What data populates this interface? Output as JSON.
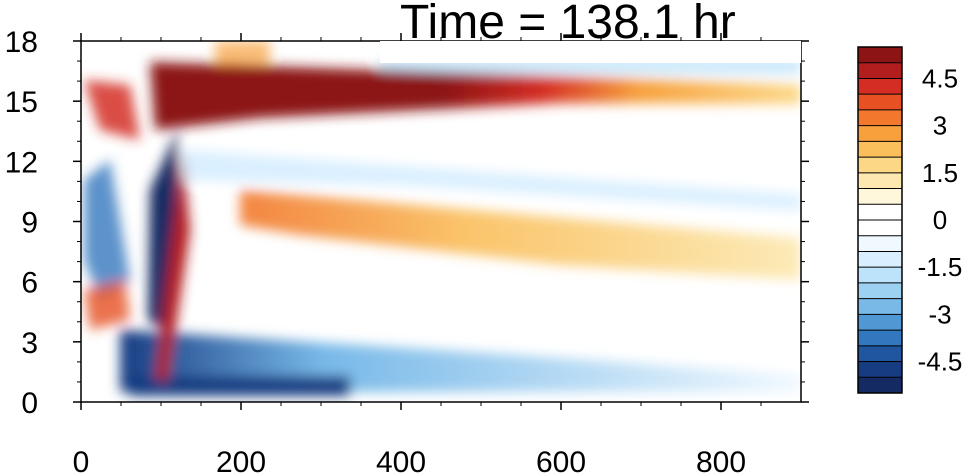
{
  "chart_data": {
    "type": "heatmap",
    "title": "Time = 138.1 hr",
    "xlabel": "",
    "ylabel": "",
    "xlim": [
      0,
      900
    ],
    "ylim": [
      0,
      18
    ],
    "x_ticks": [
      0,
      200,
      400,
      600,
      800
    ],
    "y_ticks": [
      0,
      3,
      6,
      9,
      12,
      15,
      18
    ],
    "colorbar": {
      "levels": [
        -5.5,
        -5,
        -4.5,
        -4,
        -3.5,
        -3,
        -2.5,
        -2,
        -1.5,
        -1,
        -0.5,
        0,
        0.5,
        1,
        1.5,
        2,
        2.5,
        3,
        3.5,
        4,
        4.5,
        5,
        5.5
      ],
      "tick_labels": [
        "4.5",
        "3",
        "1.5",
        "0",
        "-1.5",
        "-3",
        "-4.5"
      ],
      "tick_values": [
        4.5,
        3,
        1.5,
        0,
        -1.5,
        -3,
        -4.5
      ],
      "colors": [
        "#8c1414",
        "#b21e1e",
        "#d42d23",
        "#e65023",
        "#f2782d",
        "#f7a03c",
        "#fabe5a",
        "#fcd886",
        "#fde9b0",
        "#fff7dc",
        "#ffffff",
        "#ffffff",
        "#f0f9ff",
        "#d9efff",
        "#bde3fa",
        "#9dd1f2",
        "#78b9e8",
        "#5098d4",
        "#3278be",
        "#2056a0",
        "#183c82",
        "#142a62"
      ]
    },
    "grid": false,
    "features": [
      {
        "name": "upper warm band",
        "x": [
          80,
          900
        ],
        "y": [
          14.2,
          16.5
        ],
        "value": 5
      },
      {
        "name": "mid warm band",
        "x": [
          230,
          900
        ],
        "y": [
          6.5,
          10.5
        ],
        "value": 1.5
      },
      {
        "name": "lower cold band",
        "x": [
          100,
          500
        ],
        "y": [
          0,
          4
        ],
        "value": -2
      },
      {
        "name": "cold plume",
        "x": [
          90,
          140
        ],
        "y": [
          4,
          14
        ],
        "value": -5
      },
      {
        "name": "warm plume",
        "x": [
          100,
          150
        ],
        "y": [
          1,
          12
        ],
        "value": 4.5
      }
    ]
  }
}
